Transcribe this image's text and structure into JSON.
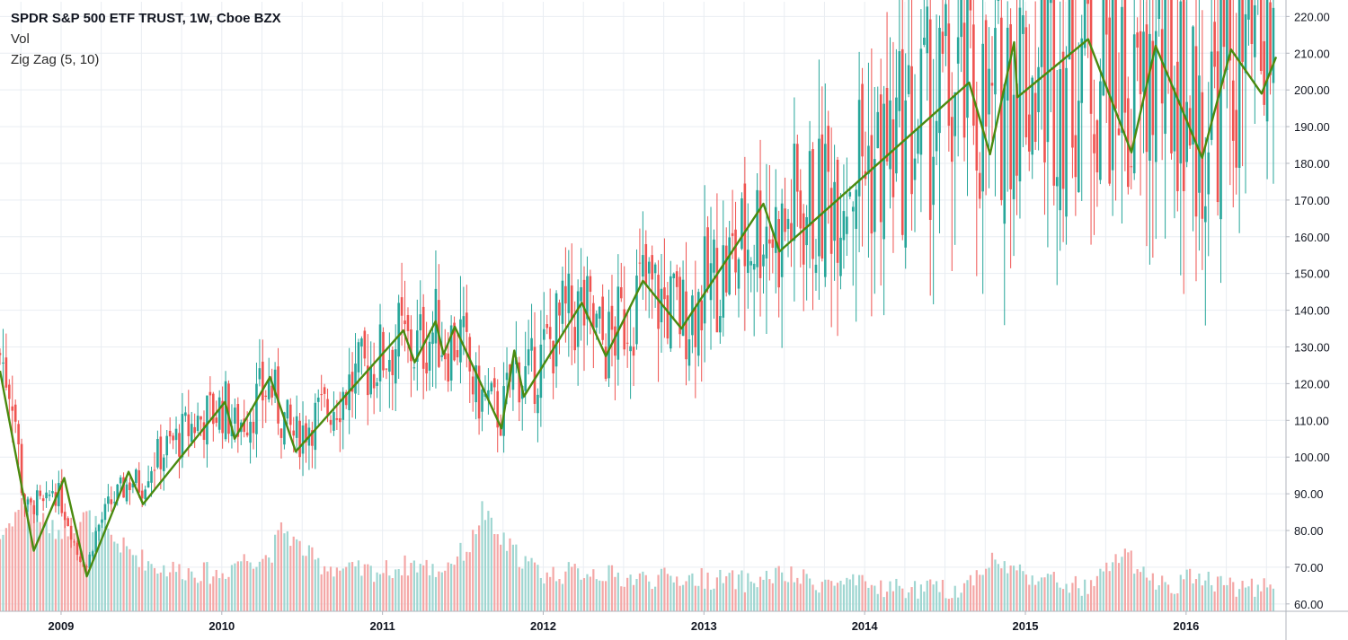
{
  "legend": {
    "title": "SPDR S&P 500 ETF TRUST, 1W, Cboe BZX",
    "vol": "Vol",
    "zigzag": "Zig Zag (5, 10)"
  },
  "colors": {
    "up": "#26a69a",
    "down": "#ef5350",
    "vol_up": "#9fd6d1",
    "vol_down": "#f4a7a6",
    "zigzag": "#4a8a0f",
    "grid": "#e9edf2",
    "axis": "#b2b5be"
  },
  "chart_data": {
    "type": "candlestick",
    "interval": "1W",
    "ylim": [
      58,
      224
    ],
    "y_ticks": [
      "60.00",
      "70.00",
      "80.00",
      "90.00",
      "100.00",
      "110.00",
      "120.00",
      "130.00",
      "140.00",
      "150.00",
      "160.00",
      "170.00",
      "180.00",
      "190.00",
      "200.00",
      "210.00",
      "220.00"
    ],
    "x_ticks": [
      "2009",
      "2010",
      "2011",
      "2012",
      "2013",
      "2014",
      "2015",
      "2016"
    ],
    "xlim": [
      2008.62,
      2016.56
    ],
    "grid": true,
    "zigzag_series": {
      "name": "Zig Zag (5, 10)",
      "points": [
        [
          2008.62,
          123.5
        ],
        [
          2008.83,
          74.5
        ],
        [
          2009.02,
          94.3
        ],
        [
          2009.16,
          67.5
        ],
        [
          2009.42,
          96.0
        ],
        [
          2009.51,
          87.2
        ],
        [
          2010.02,
          115.0
        ],
        [
          2010.08,
          105.0
        ],
        [
          2010.3,
          121.8
        ],
        [
          2010.46,
          101.5
        ],
        [
          2011.13,
          134.5
        ],
        [
          2011.2,
          125.8
        ],
        [
          2011.33,
          137.0
        ],
        [
          2011.38,
          128.0
        ],
        [
          2011.45,
          135.5
        ],
        [
          2011.74,
          107.8
        ],
        [
          2011.82,
          129.0
        ],
        [
          2011.88,
          116.5
        ],
        [
          2012.24,
          142.0
        ],
        [
          2012.39,
          127.5
        ],
        [
          2012.62,
          148.0
        ],
        [
          2012.86,
          135.0
        ],
        [
          2013.37,
          169.0
        ],
        [
          2013.47,
          156.0
        ],
        [
          2014.65,
          202.0
        ],
        [
          2014.78,
          182.5
        ],
        [
          2014.93,
          213.0
        ],
        [
          2014.95,
          198.0
        ],
        [
          2015.39,
          213.8
        ],
        [
          2015.66,
          183.0
        ],
        [
          2015.81,
          212.0
        ],
        [
          2016.1,
          181.5
        ],
        [
          2016.28,
          211.0
        ],
        [
          2016.47,
          199.0
        ],
        [
          2016.56,
          209.0
        ]
      ]
    },
    "candles_path": [
      [
        2008.62,
        128
      ],
      [
        2008.7,
        118
      ],
      [
        2008.76,
        90
      ],
      [
        2008.8,
        85
      ],
      [
        2008.84,
        88
      ],
      [
        2008.9,
        86
      ],
      [
        2008.95,
        92
      ],
      [
        2009.0,
        88
      ],
      [
        2009.05,
        82
      ],
      [
        2009.1,
        74
      ],
      [
        2009.16,
        70
      ],
      [
        2009.22,
        80
      ],
      [
        2009.3,
        87
      ],
      [
        2009.38,
        91
      ],
      [
        2009.44,
        94
      ],
      [
        2009.5,
        92
      ],
      [
        2009.55,
        98
      ],
      [
        2009.65,
        102
      ],
      [
        2009.75,
        106
      ],
      [
        2009.85,
        110
      ],
      [
        2009.95,
        112
      ],
      [
        2010.02,
        114
      ],
      [
        2010.08,
        108
      ],
      [
        2010.16,
        112
      ],
      [
        2010.3,
        120
      ],
      [
        2010.36,
        112
      ],
      [
        2010.46,
        105
      ],
      [
        2010.55,
        110
      ],
      [
        2010.62,
        112
      ],
      [
        2010.7,
        115
      ],
      [
        2010.8,
        120
      ],
      [
        2010.9,
        124
      ],
      [
        2011.0,
        128
      ],
      [
        2011.1,
        132
      ],
      [
        2011.2,
        129
      ],
      [
        2011.33,
        135
      ],
      [
        2011.4,
        131
      ],
      [
        2011.48,
        133
      ],
      [
        2011.58,
        117
      ],
      [
        2011.66,
        115
      ],
      [
        2011.74,
        111
      ],
      [
        2011.82,
        125
      ],
      [
        2011.9,
        121
      ],
      [
        2011.98,
        126
      ],
      [
        2012.1,
        136
      ],
      [
        2012.24,
        140
      ],
      [
        2012.3,
        136
      ],
      [
        2012.39,
        130
      ],
      [
        2012.48,
        136
      ],
      [
        2012.62,
        146
      ],
      [
        2012.72,
        143
      ],
      [
        2012.86,
        138
      ],
      [
        2012.95,
        142
      ],
      [
        2013.05,
        148
      ],
      [
        2013.15,
        152
      ],
      [
        2013.25,
        158
      ],
      [
        2013.37,
        166
      ],
      [
        2013.47,
        160
      ],
      [
        2013.58,
        168
      ],
      [
        2013.7,
        167
      ],
      [
        2013.82,
        176
      ],
      [
        2013.95,
        182
      ],
      [
        2014.08,
        180
      ],
      [
        2014.22,
        186
      ],
      [
        2014.4,
        193
      ],
      [
        2014.55,
        197
      ],
      [
        2014.65,
        200
      ],
      [
        2014.72,
        196
      ],
      [
        2014.78,
        190
      ],
      [
        2014.88,
        205
      ],
      [
        2014.95,
        207
      ],
      [
        2015.05,
        205
      ],
      [
        2015.15,
        208
      ],
      [
        2015.3,
        210
      ],
      [
        2015.39,
        211
      ],
      [
        2015.5,
        208
      ],
      [
        2015.6,
        203
      ],
      [
        2015.66,
        192
      ],
      [
        2015.72,
        196
      ],
      [
        2015.81,
        208
      ],
      [
        2015.9,
        206
      ],
      [
        2016.0,
        202
      ],
      [
        2016.06,
        188
      ],
      [
        2016.1,
        186
      ],
      [
        2016.2,
        203
      ],
      [
        2016.3,
        207
      ],
      [
        2016.4,
        207
      ],
      [
        2016.47,
        204
      ],
      [
        2016.52,
        212
      ],
      [
        2016.56,
        217
      ]
    ],
    "volume_path": [
      [
        2008.62,
        78
      ],
      [
        2008.72,
        85
      ],
      [
        2008.8,
        90
      ],
      [
        2008.88,
        83
      ],
      [
        2008.95,
        80
      ],
      [
        2009.05,
        81
      ],
      [
        2009.16,
        84
      ],
      [
        2009.25,
        80
      ],
      [
        2009.4,
        75
      ],
      [
        2009.6,
        70
      ],
      [
        2009.8,
        69
      ],
      [
        2010.0,
        68
      ],
      [
        2010.1,
        72
      ],
      [
        2010.3,
        73
      ],
      [
        2010.38,
        81
      ],
      [
        2010.45,
        77
      ],
      [
        2010.6,
        71
      ],
      [
        2010.8,
        69
      ],
      [
        2011.0,
        69
      ],
      [
        2011.2,
        71
      ],
      [
        2011.35,
        69
      ],
      [
        2011.55,
        76
      ],
      [
        2011.62,
        86
      ],
      [
        2011.7,
        79
      ],
      [
        2011.85,
        73
      ],
      [
        2012.0,
        68
      ],
      [
        2012.3,
        69
      ],
      [
        2012.5,
        67
      ],
      [
        2012.8,
        67
      ],
      [
        2013.0,
        67
      ],
      [
        2013.3,
        66
      ],
      [
        2013.45,
        68
      ],
      [
        2013.7,
        66
      ],
      [
        2014.0,
        65
      ],
      [
        2014.3,
        64
      ],
      [
        2014.6,
        64
      ],
      [
        2014.78,
        72
      ],
      [
        2014.95,
        69
      ],
      [
        2015.1,
        67
      ],
      [
        2015.4,
        64
      ],
      [
        2015.62,
        75
      ],
      [
        2015.7,
        68
      ],
      [
        2015.9,
        65
      ],
      [
        2016.08,
        68
      ],
      [
        2016.2,
        66
      ],
      [
        2016.4,
        64
      ],
      [
        2016.5,
        66
      ],
      [
        2016.56,
        63
      ]
    ]
  }
}
